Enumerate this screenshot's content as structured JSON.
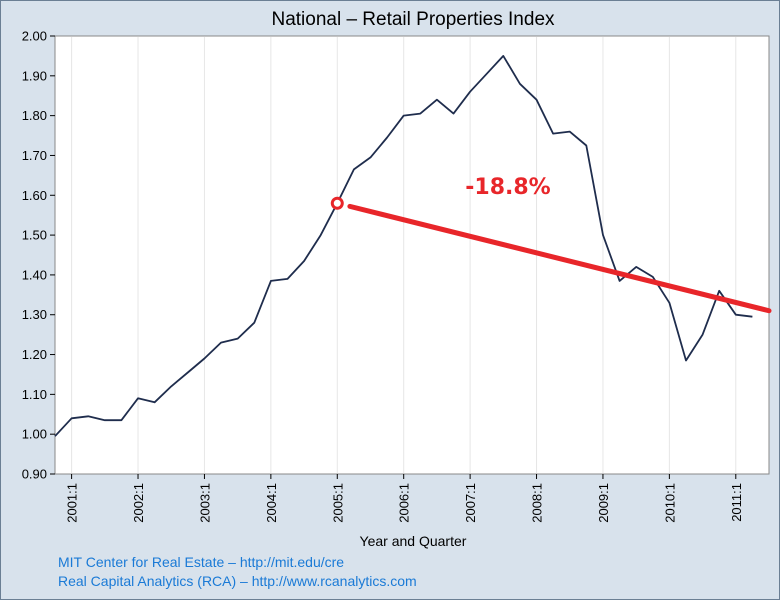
{
  "chart_data": {
    "type": "line",
    "title": "National – Retail Properties Index",
    "xlabel": "Year and Quarter",
    "ylabel": "",
    "x_tick_labels": [
      "2001:1",
      "2002:1",
      "2003:1",
      "2004:1",
      "2005:1",
      "2006:1",
      "2007:1",
      "2008:1",
      "2009:1",
      "2010:1",
      "2011:1"
    ],
    "x_range": [
      2000.75,
      2011.5
    ],
    "ylim": [
      0.9,
      2.0
    ],
    "y_ticks": [
      "0.90",
      "1.00",
      "1.10",
      "1.20",
      "1.30",
      "1.40",
      "1.50",
      "1.60",
      "1.70",
      "1.80",
      "1.90",
      "2.00"
    ],
    "grid": "vertical",
    "series": [
      {
        "color": "#1f2d4d",
        "x": [
          2000.75,
          2001.0,
          2001.25,
          2001.5,
          2001.75,
          2002.0,
          2002.25,
          2002.5,
          2002.75,
          2003.0,
          2003.25,
          2003.5,
          2003.75,
          2004.0,
          2004.25,
          2004.5,
          2004.75,
          2005.0,
          2005.25,
          2005.5,
          2005.75,
          2006.0,
          2006.25,
          2006.5,
          2006.75,
          2007.0,
          2007.25,
          2007.5,
          2007.75,
          2008.0,
          2008.25,
          2008.5,
          2008.75,
          2009.0,
          2009.25,
          2009.5,
          2009.75,
          2010.0,
          2010.25,
          2010.5,
          2010.75,
          2011.0,
          2011.25
        ],
        "values": [
          0.995,
          1.04,
          1.045,
          1.035,
          1.035,
          1.09,
          1.08,
          1.12,
          1.155,
          1.19,
          1.23,
          1.24,
          1.28,
          1.385,
          1.39,
          1.435,
          1.5,
          1.58,
          1.665,
          1.695,
          1.745,
          1.8,
          1.805,
          1.84,
          1.805,
          1.86,
          1.905,
          1.95,
          1.88,
          1.84,
          1.755,
          1.76,
          1.725,
          1.5,
          1.385,
          1.42,
          1.395,
          1.33,
          1.185,
          1.25,
          1.36,
          1.3,
          1.295
        ]
      }
    ],
    "trend_line": {
      "color": "#e8262a",
      "start": {
        "x": 2005.0,
        "y": 1.58
      },
      "end": {
        "x": 2011.5,
        "y": 1.31
      }
    },
    "annotation": "-18.8%"
  },
  "footer": {
    "line1": "MIT Center for Real Estate – http://mit.edu/cre",
    "line2": "Real Capital Analytics (RCA) – http://www.rcanalytics.com"
  }
}
